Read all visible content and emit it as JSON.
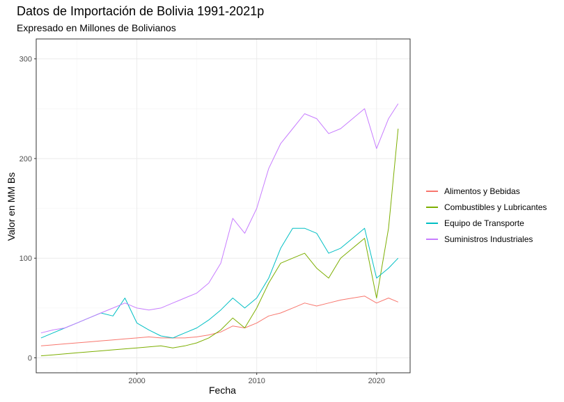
{
  "chart_data": {
    "type": "line",
    "title": "Datos de Importación de Bolivia 1991-2021p",
    "subtitle": "Expresado en Millones de Bolivianos",
    "xlabel": "Fecha",
    "ylabel": "Valor en MM Bs",
    "x_ticks": [
      "2000",
      "2010",
      "2020"
    ],
    "y_ticks": [
      "0",
      "100",
      "200",
      "300"
    ],
    "xlim": [
      1991.6,
      2022.8
    ],
    "ylim": [
      -15,
      320
    ],
    "grid": true,
    "legend_position": "right",
    "series": [
      {
        "name": "Alimentos y Bebidas",
        "color": "#F8766D",
        "x": [
          1992,
          1993,
          1994,
          1995,
          1996,
          1997,
          1998,
          1999,
          2000,
          2001,
          2002,
          2003,
          2004,
          2005,
          2006,
          2007,
          2008,
          2009,
          2010,
          2011,
          2012,
          2013,
          2014,
          2015,
          2016,
          2017,
          2018,
          2019,
          2020,
          2021,
          2021.8
        ],
        "y": [
          12,
          13,
          14,
          15,
          16,
          17,
          18,
          19,
          20,
          21,
          20,
          20,
          20,
          21,
          23,
          26,
          32,
          30,
          35,
          42,
          45,
          50,
          55,
          52,
          55,
          58,
          60,
          62,
          55,
          60,
          56
        ]
      },
      {
        "name": "Combustibles y Lubricantes",
        "color": "#7CAE00",
        "x": [
          1992,
          1993,
          1994,
          1995,
          1996,
          1997,
          1998,
          1999,
          2000,
          2001,
          2002,
          2003,
          2004,
          2005,
          2006,
          2007,
          2008,
          2009,
          2010,
          2011,
          2012,
          2013,
          2014,
          2015,
          2016,
          2017,
          2018,
          2019,
          2020,
          2021,
          2021.8
        ],
        "y": [
          2,
          3,
          4,
          5,
          6,
          7,
          8,
          9,
          10,
          11,
          12,
          10,
          12,
          15,
          20,
          28,
          40,
          30,
          50,
          75,
          95,
          100,
          105,
          90,
          80,
          100,
          110,
          120,
          60,
          130,
          230
        ]
      },
      {
        "name": "Equipo de Transporte",
        "color": "#00BFC4",
        "x": [
          1992,
          1993,
          1994,
          1995,
          1996,
          1997,
          1998,
          1999,
          2000,
          2001,
          2002,
          2003,
          2004,
          2005,
          2006,
          2007,
          2008,
          2009,
          2010,
          2011,
          2012,
          2013,
          2014,
          2015,
          2016,
          2017,
          2018,
          2019,
          2020,
          2021,
          2021.8
        ],
        "y": [
          20,
          25,
          30,
          35,
          40,
          45,
          42,
          60,
          35,
          28,
          22,
          20,
          25,
          30,
          38,
          48,
          60,
          50,
          60,
          80,
          110,
          130,
          130,
          125,
          105,
          110,
          120,
          130,
          80,
          90,
          100
        ]
      },
      {
        "name": "Suministros Industriales",
        "color": "#C77CFF",
        "x": [
          1992,
          1993,
          1994,
          1995,
          1996,
          1997,
          1998,
          1999,
          2000,
          2001,
          2002,
          2003,
          2004,
          2005,
          2006,
          2007,
          2008,
          2009,
          2010,
          2011,
          2012,
          2013,
          2014,
          2015,
          2016,
          2017,
          2018,
          2019,
          2020,
          2021,
          2021.8
        ],
        "y": [
          25,
          28,
          30,
          35,
          40,
          45,
          50,
          55,
          50,
          48,
          50,
          55,
          60,
          65,
          75,
          95,
          140,
          125,
          150,
          190,
          215,
          230,
          245,
          240,
          225,
          230,
          240,
          250,
          210,
          240,
          255
        ]
      }
    ]
  }
}
